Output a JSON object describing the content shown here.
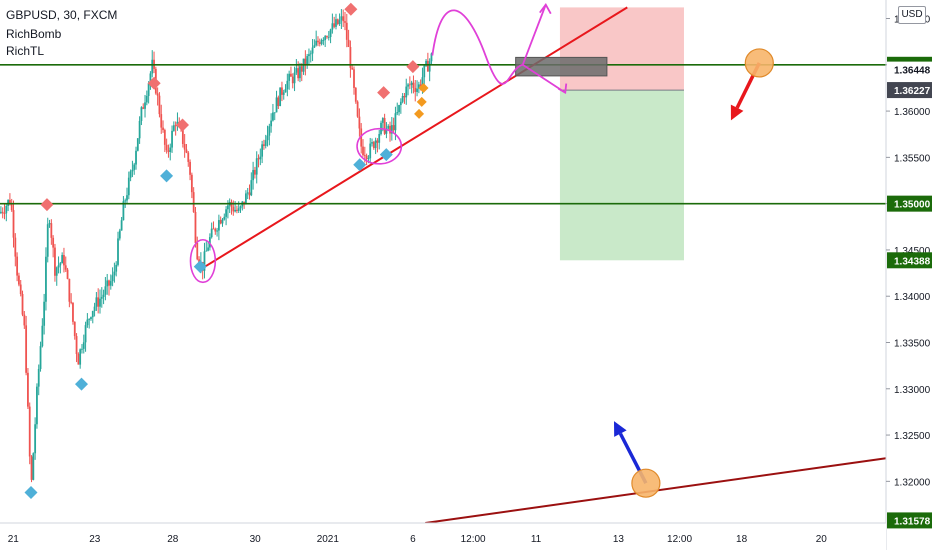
{
  "header": {
    "symbol": "GBPUSD, 30, FXCM",
    "indicator1": "RichBomb",
    "indicator2": "RichTL"
  },
  "currency_button": "USD",
  "colors": {
    "bull": "#26a69a",
    "bear": "#ef5350",
    "horizontal_line": "#1b6b0a",
    "trendline": "#e8171c",
    "long_trendline": "#9b1010",
    "magenta": "#e040d8",
    "stop_zone": "#f8b9b9",
    "target_zone": "#bfe5bf",
    "diamond_red": "#f07070",
    "diamond_blue": "#4fb0d8",
    "diamond_orange": "#f39a1f",
    "price_tag_green": "#1b6b0a",
    "price_tag_dark": "#434651",
    "arrow_red": "#e8171c",
    "arrow_blue": "#1a28d6",
    "circle_fill": "#f7b56a"
  },
  "chart_data": {
    "type": "candlestick",
    "symbol": "GBPUSD",
    "timeframe": "30",
    "ylim": [
      1.3155,
      1.372
    ],
    "y_ticks": [
      {
        "value": 1.37,
        "label": "1.37000"
      },
      {
        "value": 1.365,
        "label": "1.36500"
      },
      {
        "value": 1.36,
        "label": "1.36000"
      },
      {
        "value": 1.355,
        "label": "1.35500"
      },
      {
        "value": 1.35,
        "label": "1.35000"
      },
      {
        "value": 1.345,
        "label": "1.34500"
      },
      {
        "value": 1.34,
        "label": "1.34000"
      },
      {
        "value": 1.335,
        "label": "1.33500"
      },
      {
        "value": 1.33,
        "label": "1.33000"
      },
      {
        "value": 1.325,
        "label": "1.32500"
      },
      {
        "value": 1.32,
        "label": "1.32000"
      }
    ],
    "x_ticks": [
      {
        "label": "21",
        "pos": 0.015
      },
      {
        "label": "23",
        "pos": 0.107
      },
      {
        "label": "28",
        "pos": 0.195
      },
      {
        "label": "30",
        "pos": 0.288
      },
      {
        "label": "2021",
        "pos": 0.37
      },
      {
        "label": "6",
        "pos": 0.466
      },
      {
        "label": "12:00",
        "pos": 0.534
      },
      {
        "label": "11",
        "pos": 0.605
      },
      {
        "label": "13",
        "pos": 0.698
      },
      {
        "label": "12:00",
        "pos": 0.767
      },
      {
        "label": "18",
        "pos": 0.837
      },
      {
        "label": "20",
        "pos": 0.927
      }
    ],
    "price_path": [
      [
        0.0,
        1.349
      ],
      [
        0.012,
        1.3505
      ],
      [
        0.02,
        1.342
      ],
      [
        0.028,
        1.336
      ],
      [
        0.035,
        1.319
      ],
      [
        0.042,
        1.33
      ],
      [
        0.05,
        1.34
      ],
      [
        0.055,
        1.3495
      ],
      [
        0.062,
        1.343
      ],
      [
        0.072,
        1.344
      ],
      [
        0.08,
        1.339
      ],
      [
        0.088,
        1.333
      ],
      [
        0.095,
        1.336
      ],
      [
        0.103,
        1.3385
      ],
      [
        0.115,
        1.34
      ],
      [
        0.128,
        1.342
      ],
      [
        0.14,
        1.35
      ],
      [
        0.15,
        1.354
      ],
      [
        0.16,
        1.36
      ],
      [
        0.172,
        1.365
      ],
      [
        0.18,
        1.36
      ],
      [
        0.188,
        1.355
      ],
      [
        0.198,
        1.359
      ],
      [
        0.206,
        1.357
      ],
      [
        0.214,
        1.354
      ],
      [
        0.222,
        1.345
      ],
      [
        0.228,
        1.343
      ],
      [
        0.236,
        1.346
      ],
      [
        0.246,
        1.348
      ],
      [
        0.258,
        1.35
      ],
      [
        0.27,
        1.349
      ],
      [
        0.283,
        1.352
      ],
      [
        0.295,
        1.356
      ],
      [
        0.308,
        1.36
      ],
      [
        0.322,
        1.363
      ],
      [
        0.336,
        1.364
      ],
      [
        0.35,
        1.366
      ],
      [
        0.362,
        1.368
      ],
      [
        0.376,
        1.369
      ],
      [
        0.388,
        1.37
      ],
      [
        0.396,
        1.365
      ],
      [
        0.402,
        1.36
      ],
      [
        0.408,
        1.356
      ],
      [
        0.416,
        1.3555
      ],
      [
        0.424,
        1.357
      ],
      [
        0.432,
        1.3585
      ],
      [
        0.44,
        1.3575
      ],
      [
        0.448,
        1.3595
      ],
      [
        0.456,
        1.362
      ],
      [
        0.464,
        1.363
      ],
      [
        0.472,
        1.3625
      ],
      [
        0.48,
        1.3645
      ],
      [
        0.488,
        1.366
      ]
    ],
    "horizontal_levels": [
      1.365,
      1.35
    ],
    "price_labels": [
      {
        "label": "1.36500",
        "value": 1.365,
        "style": "green"
      },
      {
        "label": "1.36448",
        "value": 1.36448,
        "style": "plain"
      },
      {
        "label": "1.36227",
        "value": 1.36227,
        "style": "dark"
      },
      {
        "label": "1.35000",
        "value": 1.35,
        "style": "green"
      },
      {
        "label": "1.34388",
        "value": 1.34388,
        "style": "green"
      },
      {
        "label": "1.31578",
        "value": 1.31578,
        "style": "green"
      }
    ],
    "trendline": {
      "start": [
        0.228,
        1.343
      ],
      "end": [
        0.708,
        1.3712
      ]
    },
    "long_trendline": {
      "start": [
        0.48,
        1.3155
      ],
      "end": [
        1.0,
        1.3225
      ]
    },
    "position": {
      "left": 0.632,
      "right": 0.772,
      "entry": 1.36227,
      "stop": 1.3712,
      "target": 1.34388,
      "entry_box": {
        "left": 0.582,
        "right": 0.685,
        "top": 1.3658,
        "bottom": 1.3638
      }
    },
    "diamonds_red": [
      [
        0.053,
        1.3499
      ],
      [
        0.174,
        1.363
      ],
      [
        0.206,
        1.3585
      ],
      [
        0.396,
        1.371
      ],
      [
        0.433,
        1.362
      ],
      [
        0.466,
        1.3648
      ]
    ],
    "diamonds_blue": [
      [
        0.035,
        1.3188
      ],
      [
        0.092,
        1.3305
      ],
      [
        0.188,
        1.353
      ],
      [
        0.226,
        1.3432
      ],
      [
        0.406,
        1.3542
      ],
      [
        0.436,
        1.3553
      ]
    ],
    "diamonds_orange": [
      [
        0.478,
        1.3625
      ],
      [
        0.476,
        1.361
      ],
      [
        0.473,
        1.3597
      ]
    ],
    "circles_magenta": [
      [
        0.229,
        1.3438,
        0.014,
        0.0023
      ],
      [
        0.428,
        1.3562,
        0.025,
        0.0019
      ]
    ],
    "circle_markers": [
      [
        0.857,
        1.3652
      ],
      [
        0.729,
        1.3198
      ]
    ],
    "arrows": [
      {
        "from": [
          0.857,
          1.3652
        ],
        "to": [
          0.825,
          1.359
        ],
        "color": "red"
      },
      {
        "from": [
          0.729,
          1.3198
        ],
        "to": [
          0.693,
          1.3265
        ],
        "color": "blue"
      }
    ]
  }
}
